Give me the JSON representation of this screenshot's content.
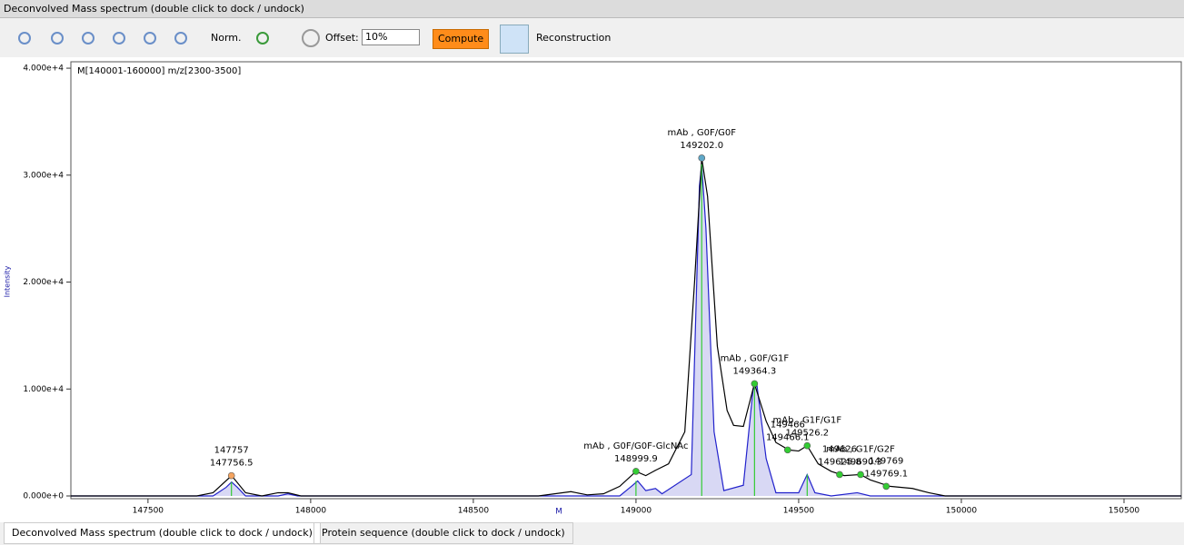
{
  "window": {
    "title": "Deconvolved Mass spectrum (double click to dock / undock)"
  },
  "toolbar": {
    "norm": "Norm.",
    "offset_label": "Offset:",
    "offset_value": "10%",
    "compute": "Compute",
    "reconstruction": "Reconstruction"
  },
  "tabs": [
    "Deconvolved Mass spectrum (double click to dock / undock)",
    "Protein sequence (double click to dock / undock)"
  ],
  "chart_data": {
    "type": "line",
    "subtitle": "M[140001-160000] m/z[2300-3500]",
    "x_label": "M",
    "y_label": "Intensity",
    "xlim": [
      147263,
      150676
    ],
    "ylim": [
      -255,
      40600
    ],
    "xticks": [
      147500,
      148000,
      148500,
      149000,
      149500,
      150000,
      150500
    ],
    "yticks": [
      {
        "value": 0,
        "label": "0.000e+0"
      },
      {
        "value": 10000,
        "label": "1.000e+4"
      },
      {
        "value": 20000,
        "label": "2.000e+4"
      },
      {
        "value": 30000,
        "label": "3.000e+4"
      },
      {
        "value": 40000,
        "label": "4.000e+4"
      }
    ],
    "series": [
      {
        "color": "#2222cc",
        "fill": "#d8d8f4",
        "x": [
          147263,
          147700,
          147740,
          147757,
          147775,
          147800,
          147900,
          147930,
          147960,
          148950,
          148990,
          149005,
          149030,
          149060,
          149080,
          149170,
          149195,
          149202,
          149215,
          149240,
          149270,
          149330,
          149360,
          149372,
          149400,
          149430,
          149500,
          149526,
          149550,
          149600,
          149680,
          149720,
          150676
        ],
        "values": [
          0,
          0,
          800,
          1300,
          800,
          0,
          0,
          200,
          0,
          0,
          1000,
          1400,
          500,
          700,
          200,
          2000,
          29000,
          31000,
          25000,
          6000,
          500,
          1000,
          10000,
          10300,
          3500,
          300,
          300,
          2000,
          300,
          0,
          300,
          0,
          0
        ]
      },
      {
        "color": "#000000",
        "x": [
          147263,
          147650,
          147700,
          147757,
          147800,
          147850,
          147900,
          147930,
          147970,
          148700,
          148800,
          148850,
          148900,
          148950,
          149000,
          149030,
          149060,
          149100,
          149150,
          149180,
          149202,
          149220,
          149250,
          149280,
          149300,
          149330,
          149364,
          149400,
          149430,
          149470,
          149500,
          149526,
          149560,
          149600,
          149640,
          149690,
          149720,
          149780,
          149850,
          149900,
          149950,
          150676
        ],
        "values": [
          0,
          0,
          300,
          1900,
          300,
          0,
          300,
          300,
          0,
          0,
          400,
          100,
          200,
          900,
          2300,
          1900,
          2400,
          3000,
          6000,
          20000,
          31600,
          28000,
          14000,
          8000,
          6600,
          6500,
          10500,
          7000,
          5000,
          4300,
          4200,
          4700,
          3000,
          2300,
          1900,
          2000,
          1500,
          900,
          700,
          300,
          0,
          0
        ]
      }
    ],
    "sticks": {
      "color": "#33cc33",
      "x": [
        147756.5,
        148999.9,
        149202.0,
        149364.3,
        149526.2
      ],
      "values": [
        1300,
        1400,
        31000,
        10300,
        2000
      ]
    },
    "peaks": [
      {
        "name": "147757",
        "label": "147756.5",
        "x": 147756.5,
        "y": 1900,
        "color": "#f4a460"
      },
      {
        "name": "mAb , G0F/G0F-GlcNAc",
        "label": "148999.9",
        "x": 148999.9,
        "y": 2300,
        "color": "#33cc33"
      },
      {
        "name": "mAb , G0F/G0F",
        "label": "149202.0",
        "x": 149202.0,
        "y": 31600,
        "color": "#5fa8c8"
      },
      {
        "name": "mAb , G0F/G1F",
        "label": "149364.3",
        "x": 149364.3,
        "y": 10500,
        "color": "#33cc33"
      },
      {
        "name": "149466",
        "label": "149466.1",
        "x": 149466.1,
        "y": 4300,
        "color": "#33cc33"
      },
      {
        "name": "mAb , G1F/G1F",
        "label": "149526.2",
        "x": 149526.2,
        "y": 4700,
        "color": "#33cc33"
      },
      {
        "name": "149626",
        "label": "149625.8",
        "x": 149625.8,
        "y": 2000,
        "color": "#33cc33"
      },
      {
        "name": "mAb , G1F/G2F",
        "label": "149690.3",
        "x": 149690.3,
        "y": 2000,
        "color": "#33cc33"
      },
      {
        "name": "149769",
        "label": "149769.1",
        "x": 149769.1,
        "y": 900,
        "color": "#33cc33"
      }
    ]
  }
}
